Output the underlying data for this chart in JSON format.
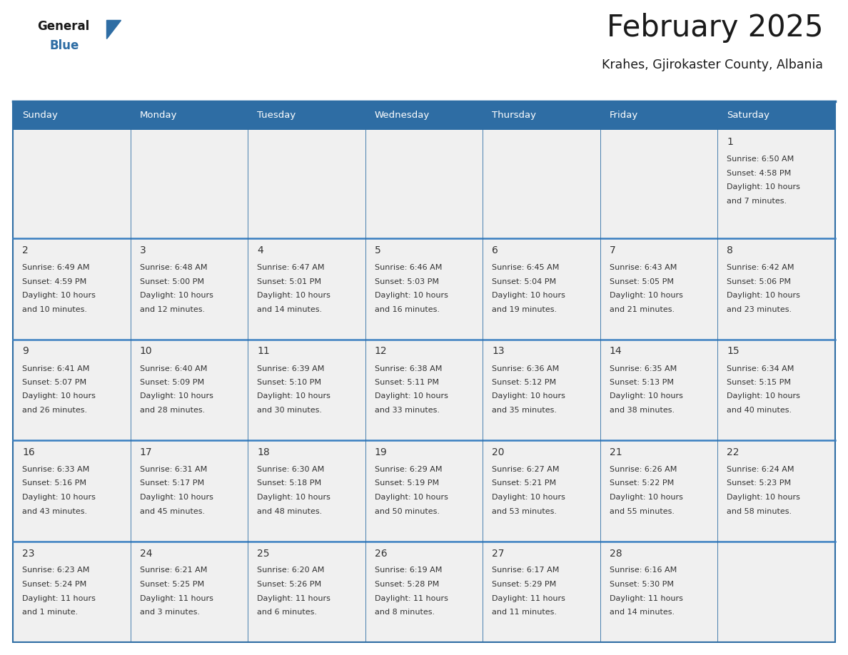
{
  "title": "February 2025",
  "subtitle": "Krahes, Gjirokaster County, Albania",
  "header_bg": "#2E6DA4",
  "header_text_color": "#FFFFFF",
  "day_names": [
    "Sunday",
    "Monday",
    "Tuesday",
    "Wednesday",
    "Thursday",
    "Friday",
    "Saturday"
  ],
  "cell_bg": "#F0F0F0",
  "border_color": "#2E6DA4",
  "row_border_color": "#3A7FC1",
  "text_color": "#333333",
  "day_num_color": "#333333",
  "logo_color1": "#1A1A1A",
  "logo_color2": "#2E6DA4",
  "triangle_color": "#2E6DA4",
  "calendar": [
    [
      null,
      null,
      null,
      null,
      null,
      null,
      {
        "day": 1,
        "sunrise": "6:50 AM",
        "sunset": "4:58 PM",
        "daylight": "10 hours and 7 minutes."
      }
    ],
    [
      {
        "day": 2,
        "sunrise": "6:49 AM",
        "sunset": "4:59 PM",
        "daylight": "10 hours and 10 minutes."
      },
      {
        "day": 3,
        "sunrise": "6:48 AM",
        "sunset": "5:00 PM",
        "daylight": "10 hours and 12 minutes."
      },
      {
        "day": 4,
        "sunrise": "6:47 AM",
        "sunset": "5:01 PM",
        "daylight": "10 hours and 14 minutes."
      },
      {
        "day": 5,
        "sunrise": "6:46 AM",
        "sunset": "5:03 PM",
        "daylight": "10 hours and 16 minutes."
      },
      {
        "day": 6,
        "sunrise": "6:45 AM",
        "sunset": "5:04 PM",
        "daylight": "10 hours and 19 minutes."
      },
      {
        "day": 7,
        "sunrise": "6:43 AM",
        "sunset": "5:05 PM",
        "daylight": "10 hours and 21 minutes."
      },
      {
        "day": 8,
        "sunrise": "6:42 AM",
        "sunset": "5:06 PM",
        "daylight": "10 hours and 23 minutes."
      }
    ],
    [
      {
        "day": 9,
        "sunrise": "6:41 AM",
        "sunset": "5:07 PM",
        "daylight": "10 hours and 26 minutes."
      },
      {
        "day": 10,
        "sunrise": "6:40 AM",
        "sunset": "5:09 PM",
        "daylight": "10 hours and 28 minutes."
      },
      {
        "day": 11,
        "sunrise": "6:39 AM",
        "sunset": "5:10 PM",
        "daylight": "10 hours and 30 minutes."
      },
      {
        "day": 12,
        "sunrise": "6:38 AM",
        "sunset": "5:11 PM",
        "daylight": "10 hours and 33 minutes."
      },
      {
        "day": 13,
        "sunrise": "6:36 AM",
        "sunset": "5:12 PM",
        "daylight": "10 hours and 35 minutes."
      },
      {
        "day": 14,
        "sunrise": "6:35 AM",
        "sunset": "5:13 PM",
        "daylight": "10 hours and 38 minutes."
      },
      {
        "day": 15,
        "sunrise": "6:34 AM",
        "sunset": "5:15 PM",
        "daylight": "10 hours and 40 minutes."
      }
    ],
    [
      {
        "day": 16,
        "sunrise": "6:33 AM",
        "sunset": "5:16 PM",
        "daylight": "10 hours and 43 minutes."
      },
      {
        "day": 17,
        "sunrise": "6:31 AM",
        "sunset": "5:17 PM",
        "daylight": "10 hours and 45 minutes."
      },
      {
        "day": 18,
        "sunrise": "6:30 AM",
        "sunset": "5:18 PM",
        "daylight": "10 hours and 48 minutes."
      },
      {
        "day": 19,
        "sunrise": "6:29 AM",
        "sunset": "5:19 PM",
        "daylight": "10 hours and 50 minutes."
      },
      {
        "day": 20,
        "sunrise": "6:27 AM",
        "sunset": "5:21 PM",
        "daylight": "10 hours and 53 minutes."
      },
      {
        "day": 21,
        "sunrise": "6:26 AM",
        "sunset": "5:22 PM",
        "daylight": "10 hours and 55 minutes."
      },
      {
        "day": 22,
        "sunrise": "6:24 AM",
        "sunset": "5:23 PM",
        "daylight": "10 hours and 58 minutes."
      }
    ],
    [
      {
        "day": 23,
        "sunrise": "6:23 AM",
        "sunset": "5:24 PM",
        "daylight": "11 hours and 1 minute."
      },
      {
        "day": 24,
        "sunrise": "6:21 AM",
        "sunset": "5:25 PM",
        "daylight": "11 hours and 3 minutes."
      },
      {
        "day": 25,
        "sunrise": "6:20 AM",
        "sunset": "5:26 PM",
        "daylight": "11 hours and 6 minutes."
      },
      {
        "day": 26,
        "sunrise": "6:19 AM",
        "sunset": "5:28 PM",
        "daylight": "11 hours and 8 minutes."
      },
      {
        "day": 27,
        "sunrise": "6:17 AM",
        "sunset": "5:29 PM",
        "daylight": "11 hours and 11 minutes."
      },
      {
        "day": 28,
        "sunrise": "6:16 AM",
        "sunset": "5:30 PM",
        "daylight": "11 hours and 14 minutes."
      },
      null
    ]
  ]
}
